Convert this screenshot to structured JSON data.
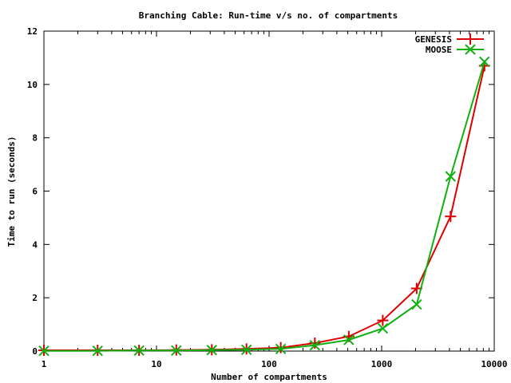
{
  "chart_data": {
    "type": "line",
    "title": "Branching Cable: Run-time v/s no. of compartments",
    "xlabel": "Number of compartments",
    "ylabel": "Time to run (seconds)",
    "xscale": "log",
    "xlim": [
      1,
      10000
    ],
    "ylim": [
      0,
      12
    ],
    "xticks": [
      1,
      10,
      100,
      1000,
      10000
    ],
    "xtick_labels": [
      "1",
      "10",
      "100",
      "1000",
      "10000"
    ],
    "yticks": [
      0,
      2,
      4,
      6,
      8,
      10,
      12
    ],
    "ytick_labels": [
      "0",
      "2",
      "4",
      "6",
      "8",
      "10",
      "12"
    ],
    "grid": false,
    "legend_position": "top-right",
    "series": [
      {
        "name": "GENESIS",
        "color": "#dd0000",
        "marker": "plus",
        "x": [
          1,
          3,
          7,
          15,
          31,
          63,
          127,
          255,
          511,
          1023,
          2047,
          4095,
          8191
        ],
        "y": [
          0.03,
          0.03,
          0.03,
          0.04,
          0.05,
          0.08,
          0.13,
          0.3,
          0.55,
          1.15,
          2.35,
          5.05,
          10.7
        ]
      },
      {
        "name": "MOOSE",
        "color": "#11b011",
        "marker": "cross",
        "x": [
          1,
          3,
          7,
          15,
          31,
          63,
          127,
          255,
          511,
          1023,
          2047,
          4095,
          8191
        ],
        "y": [
          0.01,
          0.01,
          0.02,
          0.02,
          0.04,
          0.05,
          0.08,
          0.22,
          0.42,
          0.85,
          1.75,
          6.55,
          10.85
        ]
      }
    ]
  }
}
